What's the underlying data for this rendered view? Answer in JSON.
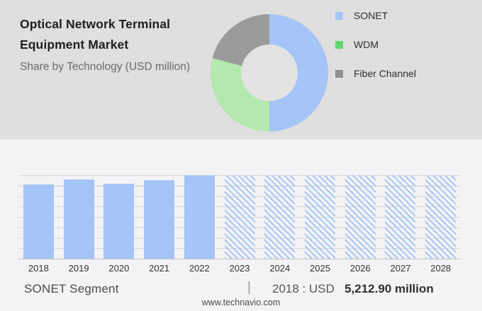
{
  "header": {
    "title_line1": "Optical Network Terminal",
    "title_line2": "Equipment Market",
    "subtitle": "Share by Technology (USD million)"
  },
  "legend": {
    "position": "right",
    "items": [
      {
        "label": "SONET",
        "color": "#a5c4f7"
      },
      {
        "label": "WDM",
        "color": "#5fd873"
      },
      {
        "label": "Fiber Channel",
        "color": "#8f8f8f"
      }
    ]
  },
  "chart_data": [
    {
      "type": "pie",
      "subtype": "donut",
      "title": "Optical Network Terminal Equipment Market — Share by Technology (USD million)",
      "labels": [
        "SONET",
        "WDM",
        "Fiber Channel"
      ],
      "values_pct": [
        50,
        29,
        21
      ],
      "colors": [
        "#a5c4f7",
        "#b3e8ae",
        "#9b9b9b"
      ],
      "start_angle_deg": 0,
      "hole_ratio": 0.48,
      "hole_color": "#e3e3e3",
      "legend_position": "right"
    },
    {
      "type": "bar",
      "categories": [
        "2018",
        "2019",
        "2020",
        "2021",
        "2022",
        "2023",
        "2024",
        "2025",
        "2026",
        "2027",
        "2028"
      ],
      "values_relative": [
        0.894,
        0.948,
        0.896,
        0.942,
        1.0,
        1.0,
        1.0,
        1.0,
        1.0,
        1.0,
        1.0
      ],
      "forecast_hatched": [
        false,
        false,
        false,
        false,
        false,
        true,
        true,
        true,
        true,
        true,
        true
      ],
      "bar_color": "#a5c4f7",
      "hatch_color": "#aac8f6",
      "gridline_count": 9,
      "grid_on": true,
      "xlabel": "",
      "ylabel": "",
      "known_value": {
        "category": "2018",
        "value_usd_million": 5212.9
      }
    }
  ],
  "caption": {
    "segment_label": "SONET Segment",
    "separator": "|",
    "value_text_regular": "2018 : USD",
    "value_text_bold": "5,212.90 million"
  },
  "footer": {
    "website": "www.technavio.com"
  },
  "colors": {
    "top_section_bg": "#dfdfdf",
    "bottom_section_bg": "#f3f3f5",
    "gridline": "#d7d7d7",
    "axis_line": "#c3c3c3",
    "title_text": "#1f1f1f",
    "subtitle_text": "#6b6b6b"
  }
}
